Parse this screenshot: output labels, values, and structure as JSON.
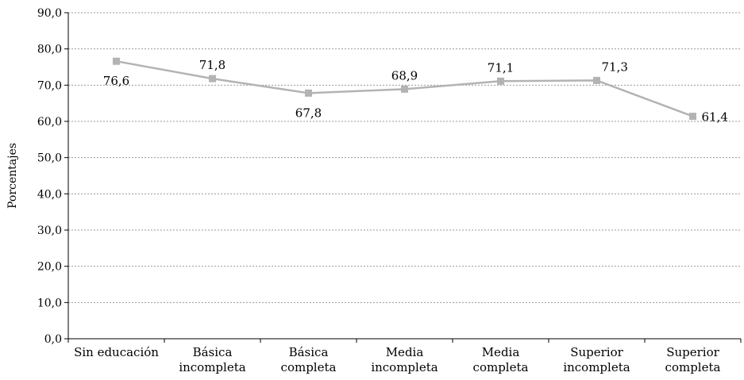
{
  "chart_data": {
    "type": "line",
    "title": "",
    "xlabel": "",
    "ylabel": "Porcentajes",
    "ylim": [
      0,
      90
    ],
    "yticks": [
      "0,0",
      "10,0",
      "20,0",
      "30,0",
      "40,0",
      "50,0",
      "60,0",
      "70,0",
      "80,0",
      "90,0"
    ],
    "grid": true,
    "legend": "none",
    "categories": [
      [
        "Sin educación"
      ],
      [
        "Básica",
        "incompleta"
      ],
      [
        "Básica",
        "completa"
      ],
      [
        "Media",
        "incompleta"
      ],
      [
        "Media",
        "completa"
      ],
      [
        "Superior",
        "incompleta"
      ],
      [
        "Superior",
        "completa"
      ]
    ],
    "series": [
      {
        "values": [
          76.6,
          71.8,
          67.8,
          68.9,
          71.1,
          71.3,
          61.4
        ],
        "labels": [
          "76,6",
          "71,8",
          "67,8",
          "68,9",
          "71,1",
          "71,3",
          "61,4"
        ],
        "color": "#b3b3b3"
      }
    ]
  }
}
